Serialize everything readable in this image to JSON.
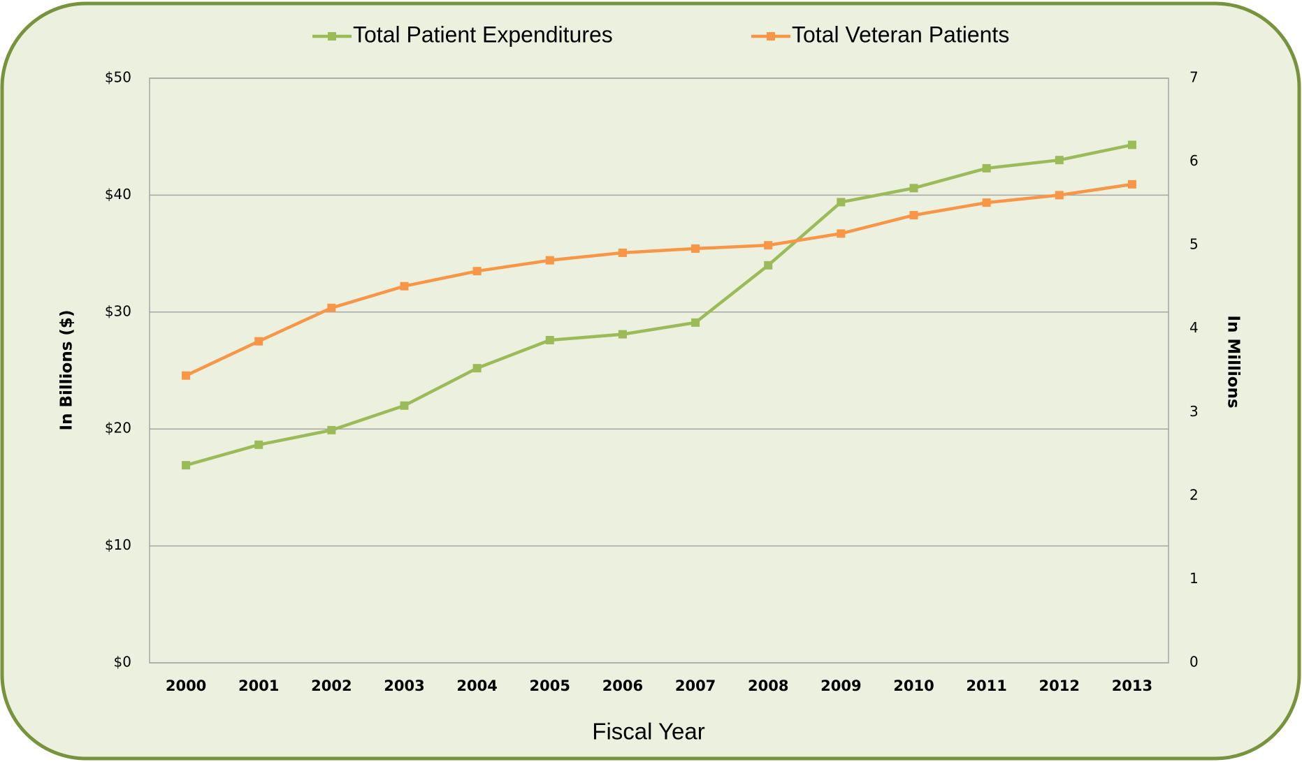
{
  "chart_data": {
    "type": "line",
    "categories": [
      "2000",
      "2001",
      "2002",
      "2003",
      "2004",
      "2005",
      "2006",
      "2007",
      "2008",
      "2009",
      "2010",
      "2011",
      "2012",
      "2013"
    ],
    "series": [
      {
        "name": "Total Patient Expenditures",
        "color": "#9bbb59",
        "values": [
          16.9,
          18.65,
          19.9,
          22.0,
          25.2,
          27.6,
          28.1,
          29.1,
          34.0,
          39.4,
          40.6,
          42.3,
          43.0,
          44.3
        ]
      },
      {
        "name": "Total Veteran Patients",
        "color": "#f79646",
        "axis": "y2",
        "values": [
          3.44,
          3.85,
          4.25,
          4.51,
          4.69,
          4.82,
          4.91,
          4.96,
          5.0,
          5.14,
          5.36,
          5.51,
          5.6,
          5.73
        ]
      }
    ],
    "ylabel": "In Billions ($)",
    "y2label": "In Millions",
    "xlabel": "Fiscal Year",
    "ylim": [
      0,
      50
    ],
    "yticks": [
      {
        "value": 0,
        "label": "$0"
      },
      {
        "value": 10,
        "label": "$10"
      },
      {
        "value": 20,
        "label": "$20"
      },
      {
        "value": 30,
        "label": "$30"
      },
      {
        "value": 40,
        "label": "$40"
      },
      {
        "value": 50,
        "label": "$50"
      }
    ],
    "y2lim": [
      0,
      7
    ],
    "y2ticks": [
      0,
      1,
      2,
      3,
      4,
      5,
      6,
      7
    ],
    "grid": true,
    "legend": "top"
  }
}
